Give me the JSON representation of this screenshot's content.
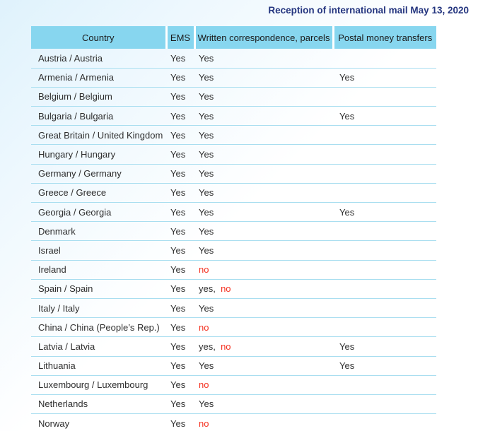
{
  "title": "Reception of international mail May 13, 2020",
  "colors": {
    "header_bg": "#87d6ef",
    "row_border": "#a9def0",
    "title_color": "#24357f",
    "text_color": "#2e2e2e",
    "no_color": "#f4301f"
  },
  "table": {
    "headers": [
      "Country",
      "EMS",
      "Written correspondence, parcels",
      "Postal money transfers"
    ],
    "rows": [
      {
        "country": "Austria / Austria",
        "ems": "Yes",
        "written": [
          {
            "t": "Yes",
            "red": false
          }
        ],
        "postal": ""
      },
      {
        "country": "Armenia / Armenia",
        "ems": "Yes",
        "written": [
          {
            "t": "Yes",
            "red": false
          }
        ],
        "postal": "Yes"
      },
      {
        "country": "Belgium / Belgium",
        "ems": "Yes",
        "written": [
          {
            "t": "Yes",
            "red": false
          }
        ],
        "postal": ""
      },
      {
        "country": "Bulgaria / Bulgaria",
        "ems": "Yes",
        "written": [
          {
            "t": "Yes",
            "red": false
          }
        ],
        "postal": "Yes"
      },
      {
        "country": "Great Britain / United Kingdom",
        "ems": "Yes",
        "written": [
          {
            "t": "Yes",
            "red": false
          }
        ],
        "postal": ""
      },
      {
        "country": "Hungary / Hungary",
        "ems": "Yes",
        "written": [
          {
            "t": "Yes",
            "red": false
          }
        ],
        "postal": ""
      },
      {
        "country": "Germany / Germany",
        "ems": "Yes",
        "written": [
          {
            "t": "Yes",
            "red": false
          }
        ],
        "postal": ""
      },
      {
        "country": "Greece / Greece",
        "ems": "Yes",
        "written": [
          {
            "t": "Yes",
            "red": false
          }
        ],
        "postal": ""
      },
      {
        "country": "Georgia / Georgia",
        "ems": "Yes",
        "written": [
          {
            "t": "Yes",
            "red": false
          }
        ],
        "postal": "Yes"
      },
      {
        "country": "Denmark",
        "ems": "Yes",
        "written": [
          {
            "t": "Yes",
            "red": false
          }
        ],
        "postal": ""
      },
      {
        "country": "Israel",
        "ems": "Yes",
        "written": [
          {
            "t": "Yes",
            "red": false
          }
        ],
        "postal": ""
      },
      {
        "country": "Ireland",
        "ems": "Yes",
        "written": [
          {
            "t": "no",
            "red": true
          }
        ],
        "postal": ""
      },
      {
        "country": "Spain / Spain",
        "ems": "Yes",
        "written": [
          {
            "t": "yes,  ",
            "red": false
          },
          {
            "t": "no",
            "red": true
          }
        ],
        "postal": ""
      },
      {
        "country": "Italy / Italy",
        "ems": "Yes",
        "written": [
          {
            "t": "Yes",
            "red": false
          }
        ],
        "postal": ""
      },
      {
        "country": "China / China (People’s Rep.)",
        "ems": "Yes",
        "written": [
          {
            "t": "no",
            "red": true
          }
        ],
        "postal": ""
      },
      {
        "country": "Latvia / Latvia",
        "ems": "Yes",
        "written": [
          {
            "t": "yes,  ",
            "red": false
          },
          {
            "t": "no",
            "red": true
          }
        ],
        "postal": "Yes"
      },
      {
        "country": "Lithuania",
        "ems": "Yes",
        "written": [
          {
            "t": "Yes",
            "red": false
          }
        ],
        "postal": "Yes"
      },
      {
        "country": "Luxembourg / Luxembourg",
        "ems": "Yes",
        "written": [
          {
            "t": "no",
            "red": true
          }
        ],
        "postal": ""
      },
      {
        "country": "Netherlands",
        "ems": "Yes",
        "written": [
          {
            "t": "Yes",
            "red": false
          }
        ],
        "postal": ""
      },
      {
        "country": "Norway",
        "ems": "Yes",
        "written": [
          {
            "t": "no",
            "red": true
          }
        ],
        "postal": ""
      }
    ]
  }
}
